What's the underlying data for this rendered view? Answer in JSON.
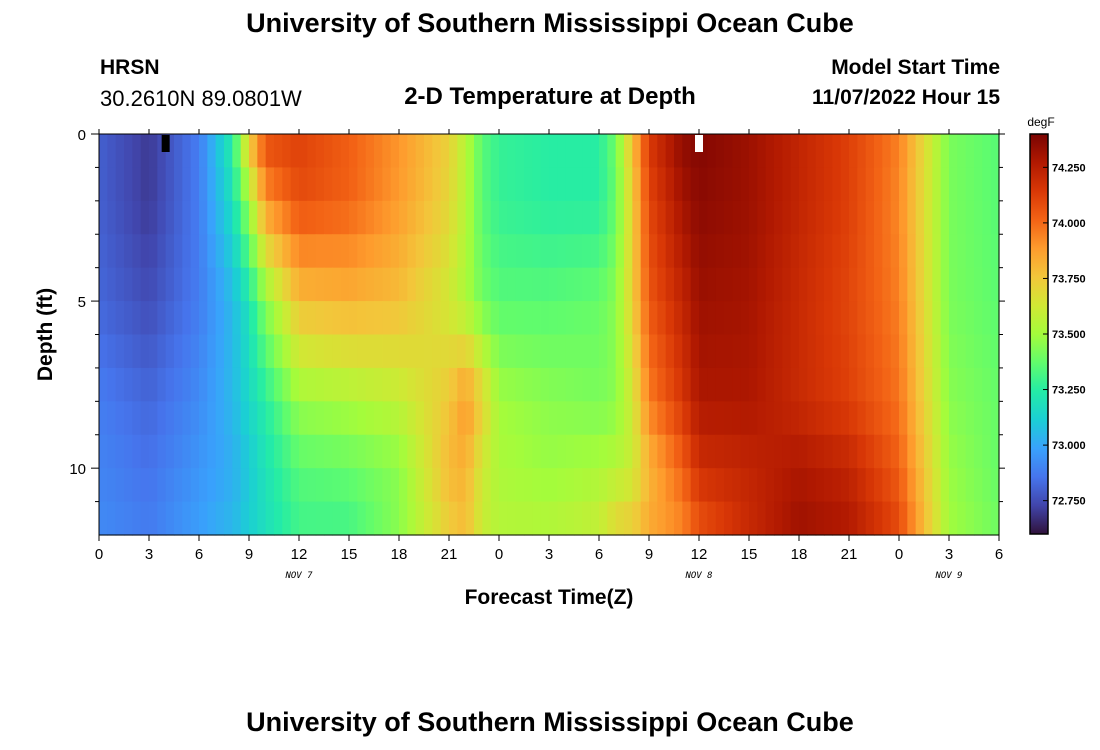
{
  "header": {
    "title": "University of Southern Mississippi Ocean Cube",
    "station": "HRSN",
    "coords": "30.2610N  89.0801W",
    "subtitle": "2-D Temperature at Depth",
    "start_label": "Model Start Time",
    "start_value": "11/07/2022 Hour 15"
  },
  "footer": {
    "title": "University of Southern Mississippi Ocean Cube"
  },
  "chart_data": {
    "type": "heatmap",
    "title": "2-D Temperature at Depth",
    "xlabel": "Forecast Time(Z)",
    "ylabel": "Depth (ft)",
    "x_start": "11/07/2022 Hour 0",
    "x_range_hours": [
      0,
      54
    ],
    "x_tick_labels": [
      "0",
      "3",
      "6",
      "9",
      "12",
      "15",
      "18",
      "21",
      "0",
      "3",
      "6",
      "9",
      "12",
      "15",
      "18",
      "21",
      "0",
      "3",
      "6"
    ],
    "date_labels": [
      {
        "hour": 12,
        "label": "NOV 7"
      },
      {
        "hour": 36,
        "label": "NOV 8"
      },
      {
        "hour": 51,
        "label": "NOV 9"
      }
    ],
    "y_range_ft": [
      0,
      12
    ],
    "y_inverted": true,
    "y_tick_labels": [
      "0",
      "5",
      "10"
    ],
    "y_ticks": [
      0,
      5,
      10
    ],
    "colorbar": {
      "unit": "degF",
      "range": [
        72.6,
        74.4
      ],
      "ticks": [
        72.75,
        73.0,
        73.25,
        73.5,
        73.75,
        74.0,
        74.25
      ],
      "tick_labels": [
        "72.750",
        "73.000",
        "73.250",
        "73.500",
        "73.750",
        "74.000",
        "74.250"
      ],
      "colors": [
        "#30123b",
        "#4145ab",
        "#4675ed",
        "#39a2fc",
        "#1bcfd4",
        "#24eca6",
        "#61fc6c",
        "#a4fc3b",
        "#d1e834",
        "#f3c63a",
        "#fe9b2d",
        "#f36315",
        "#d93806",
        "#b11901",
        "#7a0402"
      ]
    },
    "markers": [
      {
        "hour": 4,
        "color": "#000000"
      },
      {
        "hour": 36,
        "color": "#ffffff"
      }
    ],
    "time_hours": [
      0,
      3,
      6,
      8,
      9,
      10,
      12,
      15,
      18,
      21,
      22,
      23,
      24,
      27,
      30,
      31,
      32,
      33,
      35,
      36,
      39,
      42,
      45,
      48,
      51,
      54
    ],
    "depth_ft": [
      0,
      2,
      5,
      8,
      10,
      12
    ],
    "temperature_degF": [
      [
        72.8,
        72.7,
        72.88,
        73.25,
        73.78,
        74.1,
        74.12,
        74.03,
        73.9,
        73.72,
        73.55,
        73.35,
        73.28,
        73.25,
        73.25,
        73.4,
        73.78,
        74.15,
        74.35,
        74.38,
        74.32,
        74.22,
        74.12,
        73.95,
        73.42,
        73.35
      ],
      [
        72.8,
        72.7,
        72.88,
        73.18,
        73.5,
        73.9,
        74.08,
        74.02,
        73.88,
        73.7,
        73.55,
        73.35,
        73.28,
        73.25,
        73.25,
        73.38,
        73.72,
        74.1,
        74.3,
        74.36,
        74.32,
        74.22,
        74.12,
        73.93,
        73.42,
        73.35
      ],
      [
        72.82,
        72.75,
        72.88,
        73.05,
        73.2,
        73.45,
        73.78,
        73.82,
        73.78,
        73.62,
        73.52,
        73.4,
        73.35,
        73.35,
        73.38,
        73.45,
        73.72,
        74.05,
        74.22,
        74.32,
        74.3,
        74.2,
        74.1,
        73.95,
        73.42,
        73.36
      ],
      [
        72.88,
        72.82,
        72.92,
        73.05,
        73.15,
        73.25,
        73.48,
        73.52,
        73.58,
        73.75,
        73.9,
        73.72,
        73.5,
        73.45,
        73.42,
        73.45,
        73.62,
        73.95,
        74.15,
        74.28,
        74.28,
        74.2,
        74.12,
        73.98,
        73.45,
        73.38
      ],
      [
        72.9,
        72.85,
        72.95,
        73.02,
        73.1,
        73.2,
        73.35,
        73.38,
        73.45,
        73.8,
        73.82,
        73.62,
        73.52,
        73.48,
        73.52,
        73.55,
        73.6,
        73.8,
        74.02,
        74.18,
        74.22,
        74.28,
        74.22,
        74.03,
        73.48,
        73.38
      ],
      [
        72.92,
        72.88,
        72.98,
        73.05,
        73.12,
        73.18,
        73.3,
        73.3,
        73.45,
        73.72,
        73.78,
        73.6,
        73.55,
        73.55,
        73.6,
        73.72,
        73.75,
        73.85,
        73.92,
        74.05,
        74.2,
        74.32,
        74.28,
        74.1,
        73.5,
        73.4
      ]
    ]
  }
}
